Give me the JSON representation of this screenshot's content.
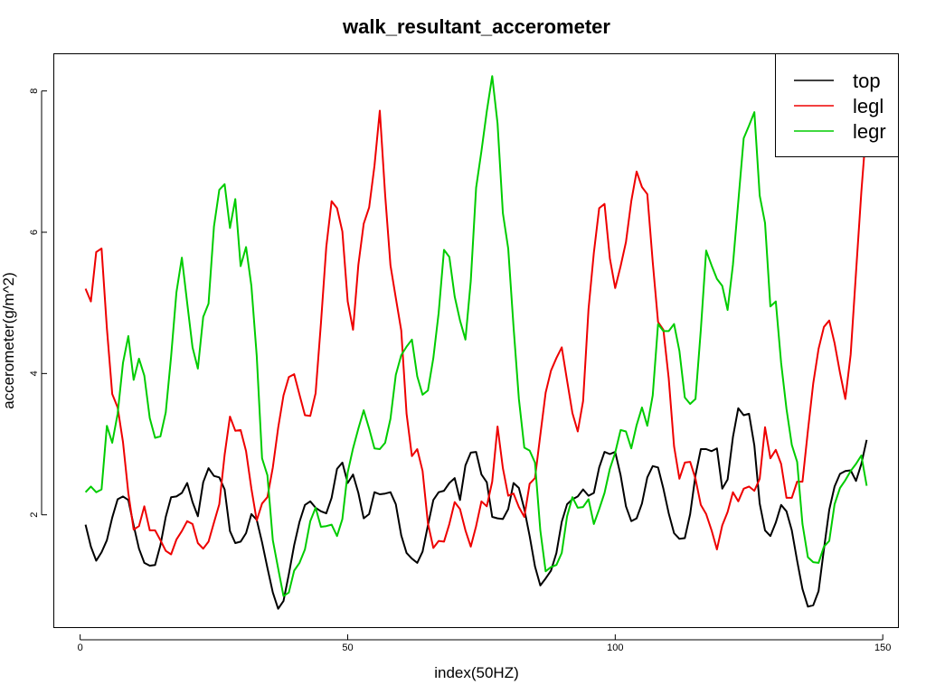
{
  "chart_data": {
    "type": "line",
    "title": "walk_resultant_accerometer",
    "xlabel": "index(50HZ)",
    "ylabel": "accerometer(g/m^2)",
    "xlim": [
      -4.84,
      152.84
    ],
    "ylim": [
      0.41,
      8.52
    ],
    "xticks": [
      0,
      50,
      100,
      150
    ],
    "yticks": [
      2,
      4,
      6,
      8
    ],
    "xtick_labels": [
      "0",
      "50",
      "100",
      "150"
    ],
    "ytick_labels": [
      "2",
      "4",
      "6",
      "8"
    ],
    "grid": false,
    "legend_position": "top-right",
    "x": [
      1,
      2,
      3,
      4,
      5,
      6,
      7,
      8,
      9,
      10,
      11,
      12,
      13,
      14,
      15,
      16,
      17,
      18,
      19,
      20,
      21,
      22,
      23,
      24,
      25,
      26,
      27,
      28,
      29,
      30,
      31,
      32,
      33,
      34,
      35,
      36,
      37,
      38,
      39,
      40,
      41,
      42,
      43,
      44,
      45,
      46,
      47,
      48,
      49,
      50,
      51,
      52,
      53,
      54,
      55,
      56,
      57,
      58,
      59,
      60,
      61,
      62,
      63,
      64,
      65,
      66,
      67,
      68,
      69,
      70,
      71,
      72,
      73,
      74,
      75,
      76,
      77,
      78,
      79,
      80,
      81,
      82,
      83,
      84,
      85,
      86,
      87,
      88,
      89,
      90,
      91,
      92,
      93,
      94,
      95,
      96,
      97,
      98,
      99,
      100,
      101,
      102,
      103,
      104,
      105,
      106,
      107,
      108,
      109,
      110,
      111,
      112,
      113,
      114,
      115,
      116,
      117,
      118,
      119,
      120,
      121,
      122,
      123,
      124,
      125,
      126,
      127,
      128,
      129,
      130,
      131,
      132,
      133,
      134,
      135,
      136,
      137,
      138,
      139,
      140,
      141,
      142,
      143,
      144,
      145,
      146,
      147
    ],
    "series": [
      {
        "name": "top",
        "color": "#000000",
        "values": [
          1.86,
          1.55,
          1.35,
          1.47,
          1.64,
          1.96,
          2.22,
          2.26,
          2.21,
          1.85,
          1.52,
          1.32,
          1.28,
          1.29,
          1.57,
          1.97,
          2.25,
          2.26,
          2.31,
          2.45,
          2.18,
          1.98,
          2.46,
          2.66,
          2.55,
          2.53,
          2.36,
          1.77,
          1.6,
          1.62,
          1.74,
          2.01,
          1.93,
          1.61,
          1.25,
          0.9,
          0.67,
          0.78,
          1.16,
          1.57,
          1.9,
          2.14,
          2.19,
          2.1,
          2.05,
          2.02,
          2.24,
          2.65,
          2.74,
          2.45,
          2.57,
          2.31,
          1.95,
          2.01,
          2.32,
          2.29,
          2.3,
          2.32,
          2.15,
          1.71,
          1.46,
          1.38,
          1.32,
          1.48,
          1.85,
          2.21,
          2.32,
          2.34,
          2.45,
          2.52,
          2.21,
          2.7,
          2.88,
          2.89,
          2.57,
          2.46,
          1.97,
          1.95,
          1.94,
          2.08,
          2.45,
          2.38,
          2.08,
          1.7,
          1.27,
          1.0,
          1.1,
          1.21,
          1.46,
          1.9,
          2.15,
          2.22,
          2.26,
          2.36,
          2.27,
          2.31,
          2.67,
          2.89,
          2.86,
          2.89,
          2.56,
          2.12,
          1.91,
          1.95,
          2.16,
          2.53,
          2.69,
          2.67,
          2.37,
          2.02,
          1.74,
          1.66,
          1.67,
          2.01,
          2.56,
          2.93,
          2.93,
          2.9,
          2.94,
          2.37,
          2.5,
          3.1,
          3.51,
          3.41,
          3.43,
          2.98,
          2.16,
          1.78,
          1.7,
          1.89,
          2.14,
          2.05,
          1.78,
          1.35,
          0.95,
          0.7,
          0.72,
          0.92,
          1.51,
          2.07,
          2.4,
          2.58,
          2.62,
          2.63,
          2.48,
          2.72,
          3.06
        ]
      },
      {
        "name": "legl",
        "color": "#ee0000",
        "values": [
          5.2,
          5.02,
          5.72,
          5.77,
          4.64,
          3.71,
          3.52,
          3.03,
          2.31,
          1.79,
          1.84,
          2.12,
          1.78,
          1.78,
          1.64,
          1.49,
          1.44,
          1.65,
          1.77,
          1.91,
          1.87,
          1.6,
          1.52,
          1.62,
          1.89,
          2.15,
          2.85,
          3.39,
          3.19,
          3.2,
          2.9,
          2.37,
          1.92,
          2.16,
          2.25,
          2.67,
          3.23,
          3.69,
          3.95,
          3.99,
          3.7,
          3.41,
          3.4,
          3.72,
          4.71,
          5.79,
          6.44,
          6.34,
          6.01,
          5.02,
          4.62,
          5.54,
          6.12,
          6.35,
          6.94,
          7.72,
          6.53,
          5.53,
          5.07,
          4.61,
          3.43,
          2.83,
          2.93,
          2.62,
          1.88,
          1.53,
          1.63,
          1.62,
          1.87,
          2.18,
          2.08,
          1.78,
          1.55,
          1.84,
          2.19,
          2.12,
          2.47,
          3.25,
          2.66,
          2.27,
          2.3,
          2.11,
          1.97,
          2.44,
          2.52,
          3.13,
          3.73,
          4.04,
          4.22,
          4.37,
          3.9,
          3.44,
          3.18,
          3.61,
          4.91,
          5.71,
          6.34,
          6.4,
          5.63,
          5.21,
          5.52,
          5.86,
          6.44,
          6.86,
          6.64,
          6.54,
          5.58,
          4.73,
          4.62,
          3.93,
          2.97,
          2.51,
          2.74,
          2.75,
          2.51,
          2.14,
          2.01,
          1.78,
          1.51,
          1.85,
          2.04,
          2.32,
          2.19,
          2.37,
          2.4,
          2.34,
          2.51,
          3.24,
          2.8,
          2.92,
          2.72,
          2.24,
          2.24,
          2.47,
          2.47,
          3.19,
          3.86,
          4.35,
          4.66,
          4.75,
          4.43,
          4.01,
          3.64,
          4.27,
          5.43,
          6.57,
          7.55
        ]
      },
      {
        "name": "legr",
        "color": "#00cc00",
        "values": [
          2.32,
          2.4,
          2.32,
          2.36,
          3.26,
          3.02,
          3.43,
          4.15,
          4.53,
          3.91,
          4.21,
          3.97,
          3.37,
          3.09,
          3.11,
          3.45,
          4.24,
          5.15,
          5.64,
          5.0,
          4.37,
          4.07,
          4.8,
          4.99,
          6.08,
          6.6,
          6.68,
          6.06,
          6.47,
          5.52,
          5.79,
          5.24,
          4.25,
          2.8,
          2.56,
          1.64,
          1.24,
          0.85,
          0.9,
          1.21,
          1.32,
          1.51,
          1.91,
          2.1,
          1.83,
          1.84,
          1.86,
          1.7,
          1.94,
          2.6,
          2.94,
          3.22,
          3.48,
          3.22,
          2.94,
          2.93,
          3.02,
          3.36,
          3.98,
          4.26,
          4.38,
          4.48,
          3.96,
          3.7,
          3.76,
          4.22,
          4.86,
          5.75,
          5.65,
          5.09,
          4.75,
          4.48,
          5.31,
          6.63,
          7.15,
          7.71,
          8.21,
          7.54,
          6.27,
          5.77,
          4.66,
          3.64,
          2.95,
          2.91,
          2.74,
          1.78,
          1.2,
          1.26,
          1.29,
          1.46,
          1.98,
          2.25,
          2.1,
          2.11,
          2.22,
          1.87,
          2.08,
          2.31,
          2.65,
          2.88,
          3.2,
          3.18,
          2.94,
          3.27,
          3.52,
          3.26,
          3.69,
          4.7,
          4.6,
          4.6,
          4.7,
          4.32,
          3.66,
          3.57,
          3.64,
          4.62,
          5.74,
          5.53,
          5.34,
          5.24,
          4.9,
          5.54,
          6.43,
          7.33,
          7.51,
          7.7,
          6.52,
          6.13,
          4.95,
          5.02,
          4.15,
          3.5,
          2.99,
          2.75,
          1.87,
          1.4,
          1.33,
          1.32,
          1.55,
          1.63,
          2.15,
          2.38,
          2.49,
          2.62,
          2.72,
          2.84,
          2.41
        ]
      }
    ]
  }
}
